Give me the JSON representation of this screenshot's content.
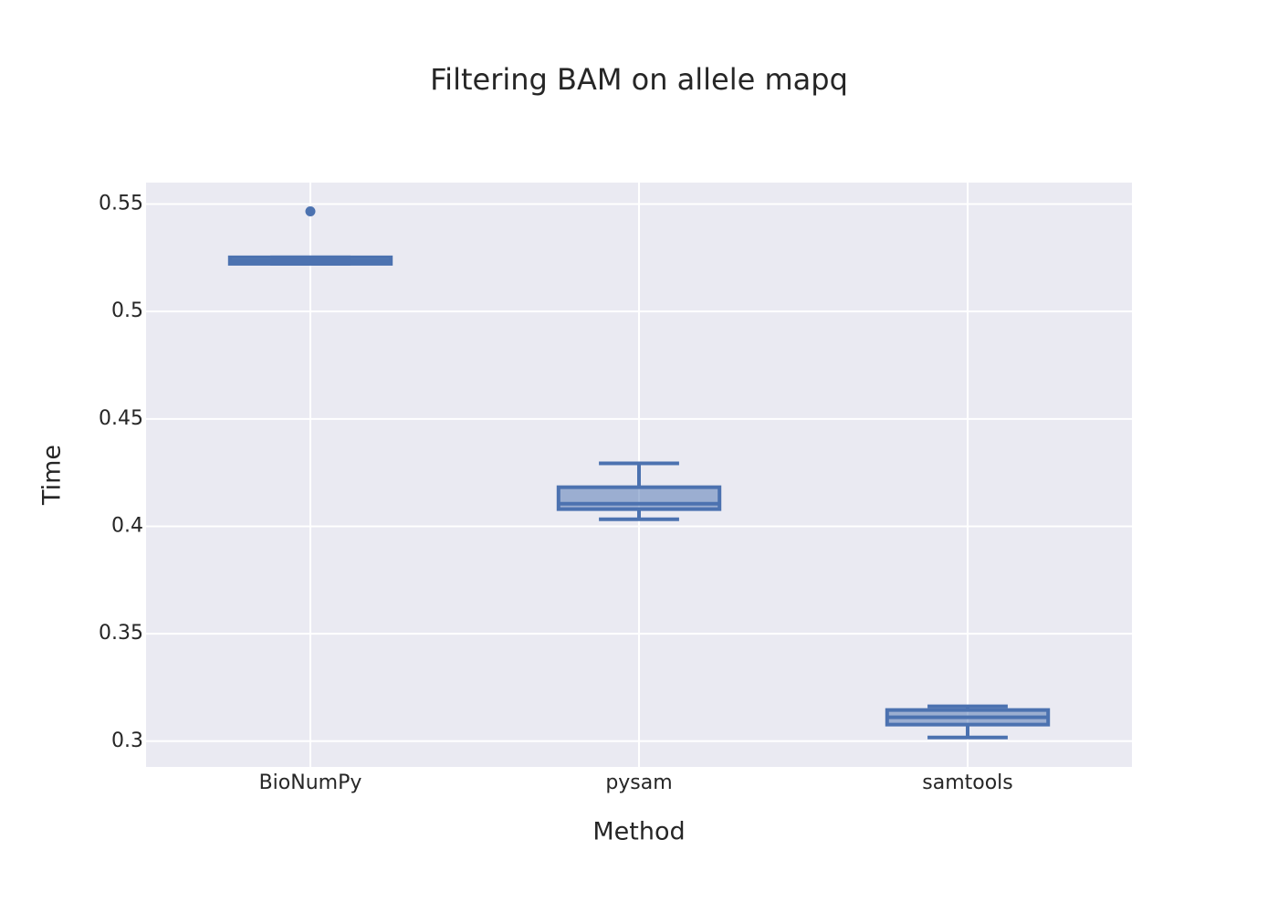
{
  "chart_data": {
    "type": "box",
    "title": "Filtering BAM on allele mapq",
    "x_label": "Method",
    "y_label": "Time",
    "categories": [
      "BioNumPy",
      "pysam",
      "samtools"
    ],
    "color": "#4c72b0",
    "boxes": [
      {
        "min": 0.5222,
        "q1": 0.5222,
        "median": 0.5235,
        "q3": 0.5252,
        "max": 0.5252,
        "outliers": [
          0.5466
        ]
      },
      {
        "min": 0.4033,
        "q1": 0.408,
        "median": 0.4105,
        "q3": 0.4182,
        "max": 0.4293,
        "outliers": []
      },
      {
        "min": 0.3017,
        "q1": 0.3077,
        "median": 0.3111,
        "q3": 0.3145,
        "max": 0.3162,
        "outliers": []
      }
    ],
    "ylim": [
      0.288,
      0.56
    ],
    "yticks": [
      0.3,
      0.35,
      0.4,
      0.45,
      0.5,
      0.55
    ],
    "grid": true
  }
}
